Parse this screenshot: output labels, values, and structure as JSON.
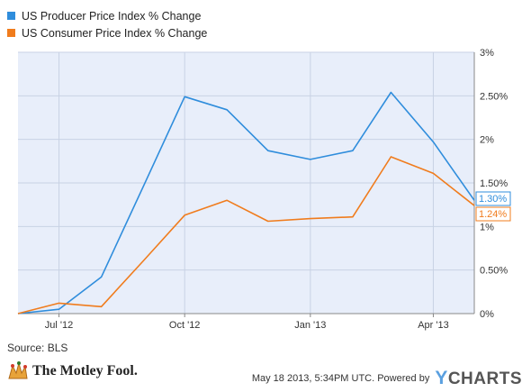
{
  "chart_data": {
    "type": "line",
    "x": [
      "2012-06-01",
      "2012-07-01",
      "2012-08-01",
      "2012-09-01",
      "2012-10-01",
      "2012-11-01",
      "2012-12-01",
      "2013-01-01",
      "2013-02-01",
      "2013-03-01",
      "2013-04-01",
      "2013-05-01"
    ],
    "x_tick_labels": [
      "Jul '12",
      "Oct '12",
      "Jan '13",
      "Apr '13"
    ],
    "y_tick_labels": [
      "0%",
      "0.50%",
      "1%",
      "1.50%",
      "2%",
      "2.50%",
      "3%"
    ],
    "ylim": [
      0,
      3
    ],
    "y_axis_side": "right",
    "grid": true,
    "legend_placement": "top-left",
    "series": [
      {
        "name": "US Producer Price Index % Change",
        "color": "#2f8ddc",
        "values": [
          0.0,
          0.05,
          0.42,
          1.47,
          2.49,
          2.34,
          1.87,
          1.77,
          1.87,
          2.54,
          1.97,
          1.3
        ],
        "end_label": "1.30%"
      },
      {
        "name": "US Consumer Price Index % Change",
        "color": "#f07c1d",
        "values": [
          0.0,
          0.12,
          0.08,
          0.61,
          1.13,
          1.3,
          1.06,
          1.09,
          1.11,
          1.8,
          1.61,
          1.24
        ],
        "end_label": "1.24%"
      }
    ]
  },
  "footer": {
    "source": "Source: BLS",
    "timestamp": "May 18 2013, 5:34PM UTC.  Powered by",
    "brand_y": "Y",
    "brand_rest": "CHARTS",
    "logo_text": "The Motley Fool."
  }
}
